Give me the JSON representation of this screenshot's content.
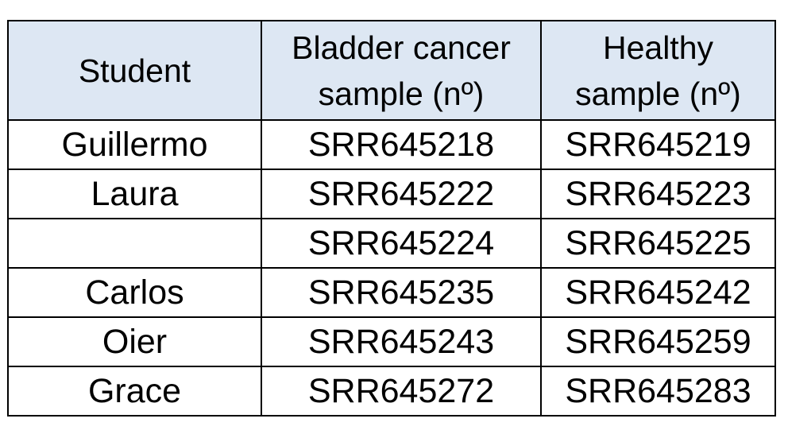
{
  "table": {
    "headers": [
      {
        "lines": [
          "Student"
        ]
      },
      {
        "lines": [
          "Bladder cancer",
          "sample (nº)"
        ]
      },
      {
        "lines": [
          "Healthy",
          "sample (nº)"
        ]
      }
    ],
    "rows": [
      {
        "student": "Guillermo",
        "bladder_cancer_sample": "SRR645218",
        "healthy_sample": "SRR645219"
      },
      {
        "student": "Laura",
        "bladder_cancer_sample": "SRR645222",
        "healthy_sample": "SRR645223"
      },
      {
        "student": "",
        "bladder_cancer_sample": "SRR645224",
        "healthy_sample": "SRR645225"
      },
      {
        "student": "Carlos",
        "bladder_cancer_sample": "SRR645235",
        "healthy_sample": "SRR645242"
      },
      {
        "student": "Oier",
        "bladder_cancer_sample": "SRR645243",
        "healthy_sample": "SRR645259"
      },
      {
        "student": "Grace",
        "bladder_cancer_sample": "SRR645272",
        "healthy_sample": "SRR645283"
      }
    ],
    "colors": {
      "header_background": "#dde7f3",
      "border": "#000000",
      "text": "#000000"
    }
  }
}
